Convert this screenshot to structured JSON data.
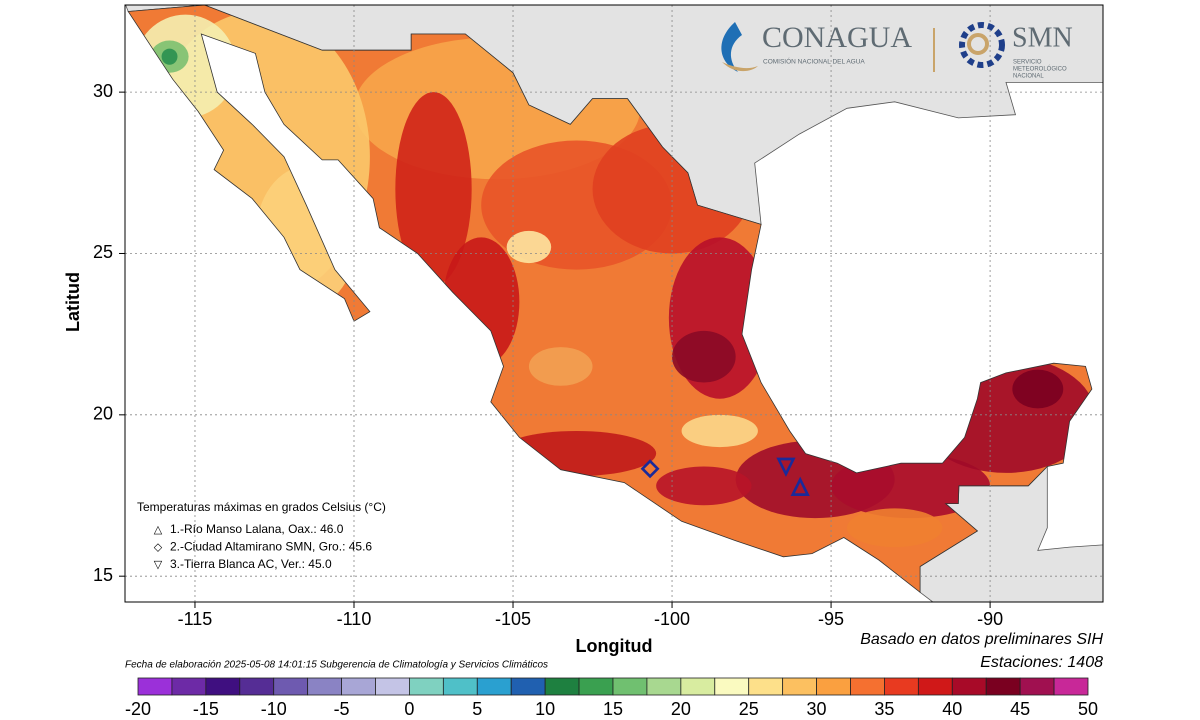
{
  "header": {
    "logo_left": "CONAGUA",
    "logo_left_sub": "COMISIÓN NACIONAL DEL AGUA",
    "logo_right": "SMN",
    "logo_right_sub": [
      "SERVICIO",
      "METEOROLÓGICO",
      "NACIONAL"
    ]
  },
  "map": {
    "xlabel": "Longitud",
    "ylabel": "Latitud",
    "xlim": [
      -117.2,
      -86.45
    ],
    "ylim": [
      14.2,
      32.7
    ],
    "xticks": [
      -115,
      -110,
      -105,
      -100,
      -95,
      -90
    ],
    "yticks": [
      15,
      20,
      25,
      30
    ],
    "grid": true
  },
  "legend": {
    "title": "Temperaturas máximas en grados Celsius (°C)",
    "entries": [
      {
        "symbol": "△",
        "label": "1.-Río Manso Lalana, Oax.: 46.0",
        "lon": -95.97,
        "lat": 17.77
      },
      {
        "symbol": "◇",
        "label": "2.-Ciudad Altamirano SMN, Gro.: 45.6",
        "lon": -100.69,
        "lat": 18.33
      },
      {
        "symbol": "▽",
        "label": "3.-Tierra Blanca AC, Ver.: 45.0",
        "lon": -96.42,
        "lat": 18.39
      }
    ]
  },
  "notes": {
    "source": "Basado en datos preliminares SIH",
    "stations": "Estaciones:  1408",
    "date": "Fecha de elaboración 2025-05-08 14:01:15 Subgerencia de Climatología y Servicios Climáticos"
  },
  "colorbar": {
    "lim": [
      -20,
      50
    ],
    "ticks": [
      -20,
      -15,
      -10,
      -5,
      0,
      5,
      10,
      15,
      20,
      25,
      30,
      35,
      40,
      45,
      50
    ],
    "colors": [
      "#9b30d9",
      "#6d2aa6",
      "#3f0f80",
      "#552d95",
      "#6e5ab0",
      "#8a83c4",
      "#a8a6d6",
      "#c4c4e6",
      "#7fd1c0",
      "#4fc0c8",
      "#2aa0d0",
      "#2060b0",
      "#1e8040",
      "#3aa050",
      "#70c070",
      "#a8d890",
      "#d8eca0",
      "#fafac0",
      "#fde08a",
      "#fcc060",
      "#faa040",
      "#f57030",
      "#e83a20",
      "#d01818",
      "#a80a28",
      "#7a0020",
      "#a01050",
      "#c82898"
    ]
  }
}
